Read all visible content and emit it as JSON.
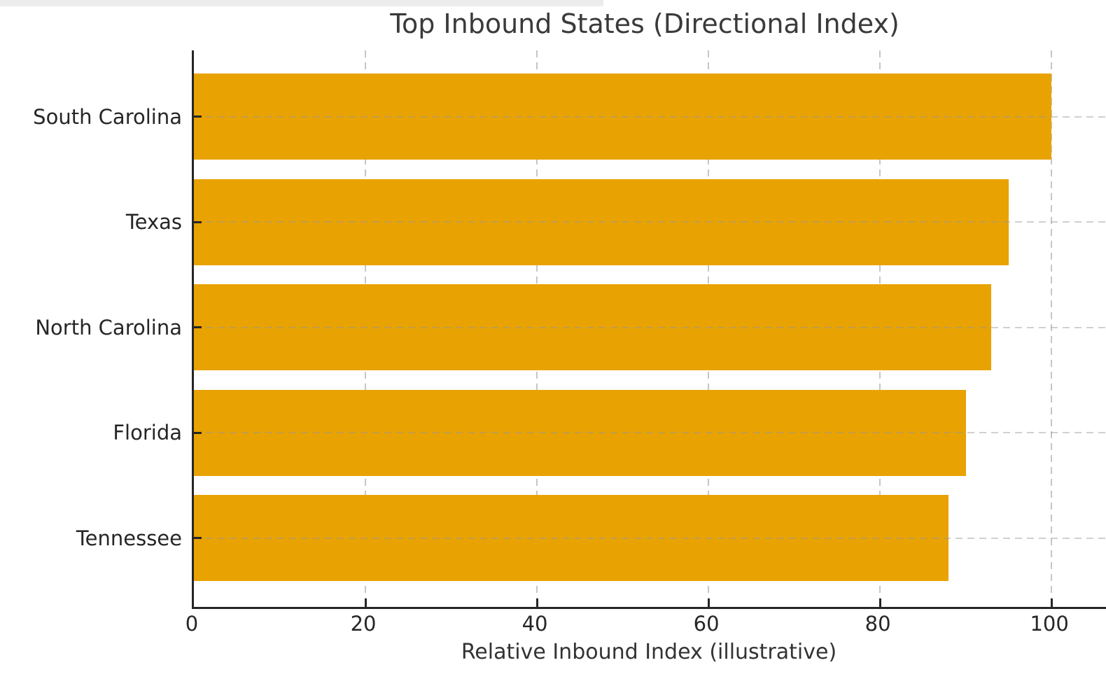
{
  "chart_data": {
    "type": "bar",
    "orientation": "horizontal",
    "title": "Top Inbound States (Directional Index)",
    "xlabel": "Relative Inbound Index (illustrative)",
    "ylabel": "",
    "categories": [
      "South Carolina",
      "Texas",
      "North Carolina",
      "Florida",
      "Tennessee"
    ],
    "values": [
      100,
      95,
      93,
      90,
      88
    ],
    "x_ticks": [
      0,
      20,
      40,
      60,
      80,
      100
    ],
    "xlim": [
      0,
      106.6
    ],
    "grid": "dashed gridlines on both axes",
    "legend_position": "none",
    "colors": {
      "bar": "#E8A303",
      "text": "#333333",
      "tick_text": "#262626",
      "grid": "#c6c6c6",
      "spine": "#262626",
      "background": "#ffffff"
    }
  }
}
